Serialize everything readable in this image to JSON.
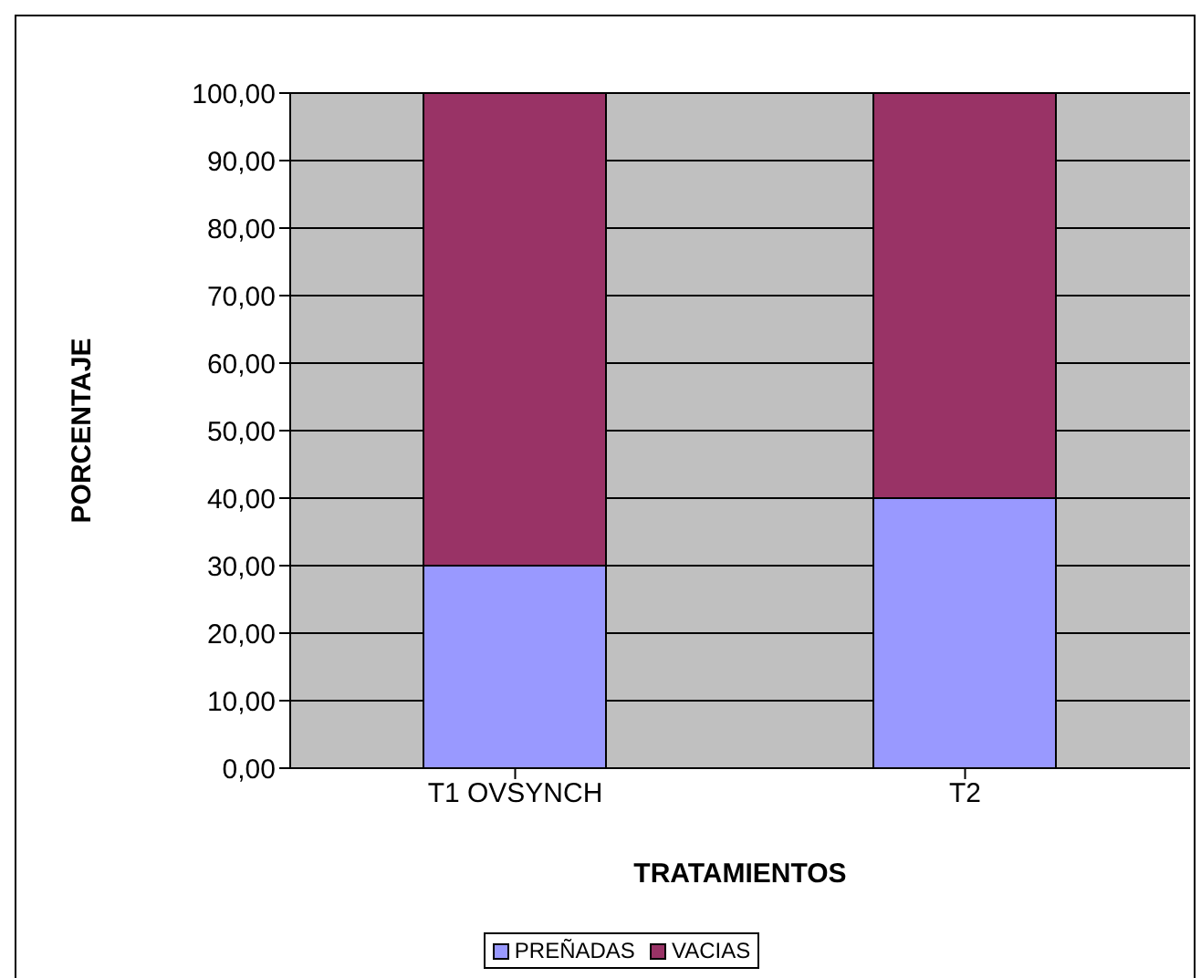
{
  "chart_data": {
    "type": "bar",
    "stacked": true,
    "xlabel": "TRATAMIENTOS",
    "ylabel": "PORCENTAJE",
    "categories": [
      "T1 OVSYNCH",
      "T2"
    ],
    "series": [
      {
        "name": "PREÑADAS",
        "color": "#9999ff",
        "values": [
          30,
          40
        ]
      },
      {
        "name": "VACIAS",
        "color": "#993366",
        "values": [
          70,
          60
        ]
      }
    ],
    "ylim": [
      0,
      100
    ],
    "yticks": [
      {
        "value": 0,
        "label": "0,00"
      },
      {
        "value": 10,
        "label": "10,00"
      },
      {
        "value": 20,
        "label": "20,00"
      },
      {
        "value": 30,
        "label": "30,00"
      },
      {
        "value": 40,
        "label": "40,00"
      },
      {
        "value": 50,
        "label": "50,00"
      },
      {
        "value": 60,
        "label": "60,00"
      },
      {
        "value": 70,
        "label": "70,00"
      },
      {
        "value": 80,
        "label": "80,00"
      },
      {
        "value": 90,
        "label": "90,00"
      },
      {
        "value": 100,
        "label": "100,00"
      }
    ],
    "grid": "y",
    "legend": "bottom"
  }
}
